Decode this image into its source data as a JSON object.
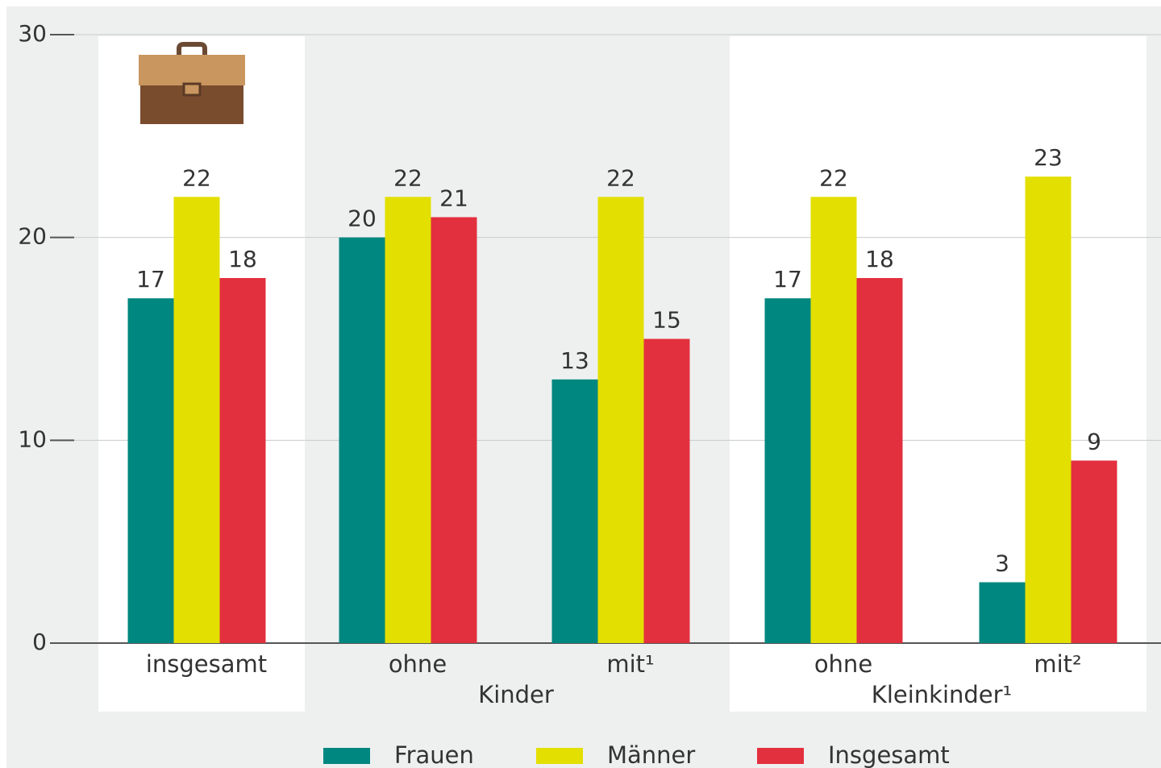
{
  "chart_data": {
    "type": "bar",
    "categories": [
      "insgesamt",
      "ohne",
      "mit¹",
      "ohne",
      "mit²"
    ],
    "group_labels": [
      "Kinder",
      "Kleinkinder¹"
    ],
    "series": [
      {
        "name": "Frauen",
        "color": "#00877f",
        "values": [
          17,
          20,
          13,
          17,
          3
        ]
      },
      {
        "name": "Männer",
        "color": "#e3df00",
        "values": [
          22,
          22,
          22,
          22,
          23
        ]
      },
      {
        "name": "Insgesamt",
        "color": "#e3303e",
        "values": [
          18,
          21,
          15,
          18,
          9
        ]
      }
    ],
    "ylim": [
      0,
      30
    ],
    "yticks": [
      0,
      10,
      20,
      30
    ],
    "grid": true,
    "legend": "bottom"
  }
}
